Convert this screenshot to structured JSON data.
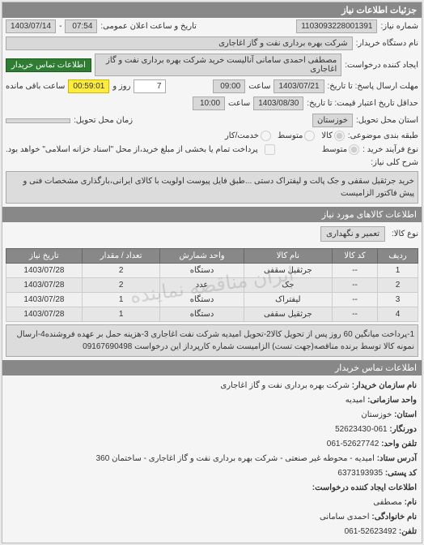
{
  "header": {
    "title": "جزئیات اطلاعات نیاز"
  },
  "top": {
    "request_no_label": "شماره نیاز:",
    "request_no": "1103093228001391",
    "announce_label": "تاریخ و ساعت اعلان عمومی:",
    "announce_time": "07:54",
    "announce_date": "1403/07/14",
    "org_label": "نام دستگاه خریدار:",
    "org": "شرکت بهره برداری نفت و گاز اغاجاری",
    "requester_label": "ایجاد کننده درخواست:",
    "requester": "مصطفی احمدی سامانی آنالیست خرید شرکت بهره برداری نفت و گاز اغاجاری",
    "contact_btn": "اطلاعات تماس خریدار",
    "deadline_label": "مهلت ارسال پاسخ: تا تاریخ:",
    "deadline_date": "1403/07/21",
    "deadline_time_label": "ساعت",
    "deadline_time": "09:00",
    "remain_days": "7",
    "remain_days_label": "روز و",
    "remain_time": "00:59:01",
    "remain_suffix": "ساعت باقی مانده",
    "credit_label": "حداقل تاریخ اعتبار قیمت: تا تاریخ:",
    "credit_date": "1403/08/30",
    "credit_time": "10:00",
    "delivery_place_label": "استان محل تحویل:",
    "delivery_place": "خوزستان",
    "delivery_time_label": "زمان محل تحویل:",
    "pack_label": "طبقه بندی موضوعی:",
    "pack_options": [
      "کالا",
      "متوسط",
      "خدمت/کار"
    ],
    "purchase_label": "نوع فرآیند خرید :",
    "purchase_options": [
      "متوسط"
    ],
    "payment_note": "پرداخت تمام یا بخشی از مبلغ خرید،از محل \"اسناد خزانه اسلامی\" خواهد بود.",
    "desc_label": "شرح کلی نیاز:",
    "desc": "خرید جرثقیل سقفی و جک پالت و لیفتراک دستی ...طبق فایل پیوست اولویت با کالای ایرانی،بارگذاری مشخصات فنی و پیش فاکتور الزامیست"
  },
  "goods": {
    "section_title": "اطلاعات کالاهای مورد نیاز",
    "type_label": "نوع کالا:",
    "type": "تعمیر و نگهداری",
    "columns": [
      "ردیف",
      "کد کالا",
      "نام کالا",
      "واحد شمارش",
      "تعداد / مقدار",
      "تاریخ نیاز"
    ],
    "rows": [
      [
        "1",
        "--",
        "جرثقیل سقفی",
        "دستگاه",
        "2",
        "1403/07/28"
      ],
      [
        "2",
        "--",
        "جک",
        "عدد",
        "2",
        "1403/07/28"
      ],
      [
        "3",
        "--",
        "لیفتراک",
        "دستگاه",
        "1",
        "1403/07/28"
      ],
      [
        "4",
        "--",
        "جرثقیل سقفی",
        "دستگاه",
        "1",
        "1403/07/28"
      ]
    ],
    "watermark": "ایران مناقصه نماینده",
    "note": "1-پرداخت میانگین 60 روز پس از تحویل کالا2-تحویل امیدیه شرکت نفت اغاجاری 3-هزینه حمل بر عهده فروشنده4-ارسال نمونه کالا توسط برنده مناقصه(جهت تست) الزامیست شماره کارپرداز این درخواست 09167690498"
  },
  "contact": {
    "section_title": "اطلاعات تماس خریدار",
    "org_label": "نام سازمان خریدار:",
    "org": "شرکت بهره برداری نفت و گاز اغاجاری",
    "unit_label": "واحد سازمانی:",
    "unit": " امیدیه",
    "province_label": "استان:",
    "province": "خوزستان",
    "fax_label": "دورنگار:",
    "fax": "061-52623430",
    "phone_label": "تلفن واحد:",
    "phone": "52627742-061",
    "addr_label": "آدرس ستاد:",
    "addr": "امیدیه - محوطه غیر صنعتی - شرکت بهره برداری نفت و گاز اغاجاری - ساختمان 360",
    "post_label": "کد پستی:",
    "post": "6373193935",
    "creator_label": "اطلاعات ایجاد کننده درخواست:",
    "name_label": "نام:",
    "name": "مصطفی",
    "lname_label": "نام خانوادگی:",
    "lname": "احمدی سامانی",
    "tel_label": "تلفن:",
    "tel": "52623492-061"
  }
}
